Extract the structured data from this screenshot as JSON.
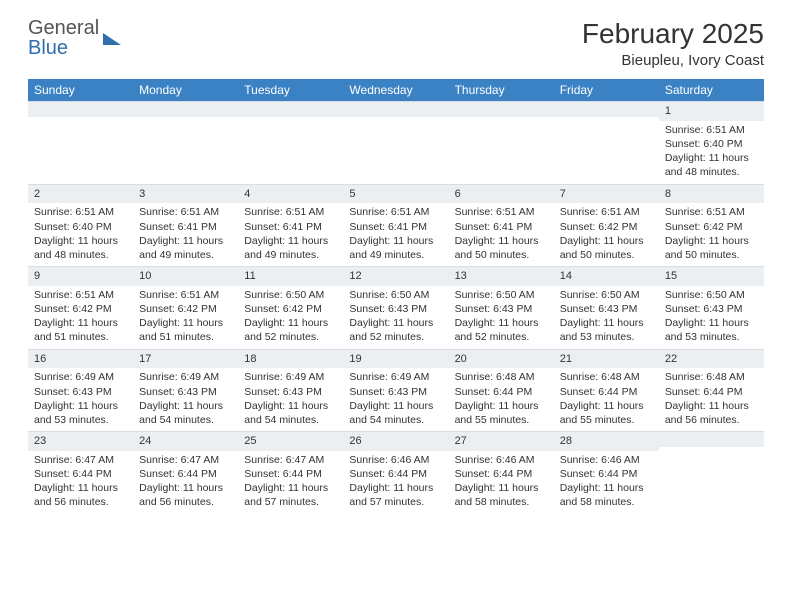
{
  "logo": {
    "word1": "General",
    "word2": "Blue"
  },
  "title": "February 2025",
  "location": "Bieupleu, Ivory Coast",
  "headerRow": {
    "bg": "#3b82c4",
    "text_color": "#ffffff",
    "days": [
      "Sunday",
      "Monday",
      "Tuesday",
      "Wednesday",
      "Thursday",
      "Friday",
      "Saturday"
    ]
  },
  "daynum_band_color": "#eceff1",
  "cell_text_color": "#333333",
  "font_size_cell": 10.5,
  "grid": [
    [
      {
        "n": "",
        "sr": "",
        "ss": "",
        "dl": ""
      },
      {
        "n": "",
        "sr": "",
        "ss": "",
        "dl": ""
      },
      {
        "n": "",
        "sr": "",
        "ss": "",
        "dl": ""
      },
      {
        "n": "",
        "sr": "",
        "ss": "",
        "dl": ""
      },
      {
        "n": "",
        "sr": "",
        "ss": "",
        "dl": ""
      },
      {
        "n": "",
        "sr": "",
        "ss": "",
        "dl": ""
      },
      {
        "n": "1",
        "sr": "Sunrise: 6:51 AM",
        "ss": "Sunset: 6:40 PM",
        "dl": "Daylight: 11 hours and 48 minutes."
      }
    ],
    [
      {
        "n": "2",
        "sr": "Sunrise: 6:51 AM",
        "ss": "Sunset: 6:40 PM",
        "dl": "Daylight: 11 hours and 48 minutes."
      },
      {
        "n": "3",
        "sr": "Sunrise: 6:51 AM",
        "ss": "Sunset: 6:41 PM",
        "dl": "Daylight: 11 hours and 49 minutes."
      },
      {
        "n": "4",
        "sr": "Sunrise: 6:51 AM",
        "ss": "Sunset: 6:41 PM",
        "dl": "Daylight: 11 hours and 49 minutes."
      },
      {
        "n": "5",
        "sr": "Sunrise: 6:51 AM",
        "ss": "Sunset: 6:41 PM",
        "dl": "Daylight: 11 hours and 49 minutes."
      },
      {
        "n": "6",
        "sr": "Sunrise: 6:51 AM",
        "ss": "Sunset: 6:41 PM",
        "dl": "Daylight: 11 hours and 50 minutes."
      },
      {
        "n": "7",
        "sr": "Sunrise: 6:51 AM",
        "ss": "Sunset: 6:42 PM",
        "dl": "Daylight: 11 hours and 50 minutes."
      },
      {
        "n": "8",
        "sr": "Sunrise: 6:51 AM",
        "ss": "Sunset: 6:42 PM",
        "dl": "Daylight: 11 hours and 50 minutes."
      }
    ],
    [
      {
        "n": "9",
        "sr": "Sunrise: 6:51 AM",
        "ss": "Sunset: 6:42 PM",
        "dl": "Daylight: 11 hours and 51 minutes."
      },
      {
        "n": "10",
        "sr": "Sunrise: 6:51 AM",
        "ss": "Sunset: 6:42 PM",
        "dl": "Daylight: 11 hours and 51 minutes."
      },
      {
        "n": "11",
        "sr": "Sunrise: 6:50 AM",
        "ss": "Sunset: 6:42 PM",
        "dl": "Daylight: 11 hours and 52 minutes."
      },
      {
        "n": "12",
        "sr": "Sunrise: 6:50 AM",
        "ss": "Sunset: 6:43 PM",
        "dl": "Daylight: 11 hours and 52 minutes."
      },
      {
        "n": "13",
        "sr": "Sunrise: 6:50 AM",
        "ss": "Sunset: 6:43 PM",
        "dl": "Daylight: 11 hours and 52 minutes."
      },
      {
        "n": "14",
        "sr": "Sunrise: 6:50 AM",
        "ss": "Sunset: 6:43 PM",
        "dl": "Daylight: 11 hours and 53 minutes."
      },
      {
        "n": "15",
        "sr": "Sunrise: 6:50 AM",
        "ss": "Sunset: 6:43 PM",
        "dl": "Daylight: 11 hours and 53 minutes."
      }
    ],
    [
      {
        "n": "16",
        "sr": "Sunrise: 6:49 AM",
        "ss": "Sunset: 6:43 PM",
        "dl": "Daylight: 11 hours and 53 minutes."
      },
      {
        "n": "17",
        "sr": "Sunrise: 6:49 AM",
        "ss": "Sunset: 6:43 PM",
        "dl": "Daylight: 11 hours and 54 minutes."
      },
      {
        "n": "18",
        "sr": "Sunrise: 6:49 AM",
        "ss": "Sunset: 6:43 PM",
        "dl": "Daylight: 11 hours and 54 minutes."
      },
      {
        "n": "19",
        "sr": "Sunrise: 6:49 AM",
        "ss": "Sunset: 6:43 PM",
        "dl": "Daylight: 11 hours and 54 minutes."
      },
      {
        "n": "20",
        "sr": "Sunrise: 6:48 AM",
        "ss": "Sunset: 6:44 PM",
        "dl": "Daylight: 11 hours and 55 minutes."
      },
      {
        "n": "21",
        "sr": "Sunrise: 6:48 AM",
        "ss": "Sunset: 6:44 PM",
        "dl": "Daylight: 11 hours and 55 minutes."
      },
      {
        "n": "22",
        "sr": "Sunrise: 6:48 AM",
        "ss": "Sunset: 6:44 PM",
        "dl": "Daylight: 11 hours and 56 minutes."
      }
    ],
    [
      {
        "n": "23",
        "sr": "Sunrise: 6:47 AM",
        "ss": "Sunset: 6:44 PM",
        "dl": "Daylight: 11 hours and 56 minutes."
      },
      {
        "n": "24",
        "sr": "Sunrise: 6:47 AM",
        "ss": "Sunset: 6:44 PM",
        "dl": "Daylight: 11 hours and 56 minutes."
      },
      {
        "n": "25",
        "sr": "Sunrise: 6:47 AM",
        "ss": "Sunset: 6:44 PM",
        "dl": "Daylight: 11 hours and 57 minutes."
      },
      {
        "n": "26",
        "sr": "Sunrise: 6:46 AM",
        "ss": "Sunset: 6:44 PM",
        "dl": "Daylight: 11 hours and 57 minutes."
      },
      {
        "n": "27",
        "sr": "Sunrise: 6:46 AM",
        "ss": "Sunset: 6:44 PM",
        "dl": "Daylight: 11 hours and 58 minutes."
      },
      {
        "n": "28",
        "sr": "Sunrise: 6:46 AM",
        "ss": "Sunset: 6:44 PM",
        "dl": "Daylight: 11 hours and 58 minutes."
      },
      {
        "n": "",
        "sr": "",
        "ss": "",
        "dl": ""
      }
    ]
  ]
}
